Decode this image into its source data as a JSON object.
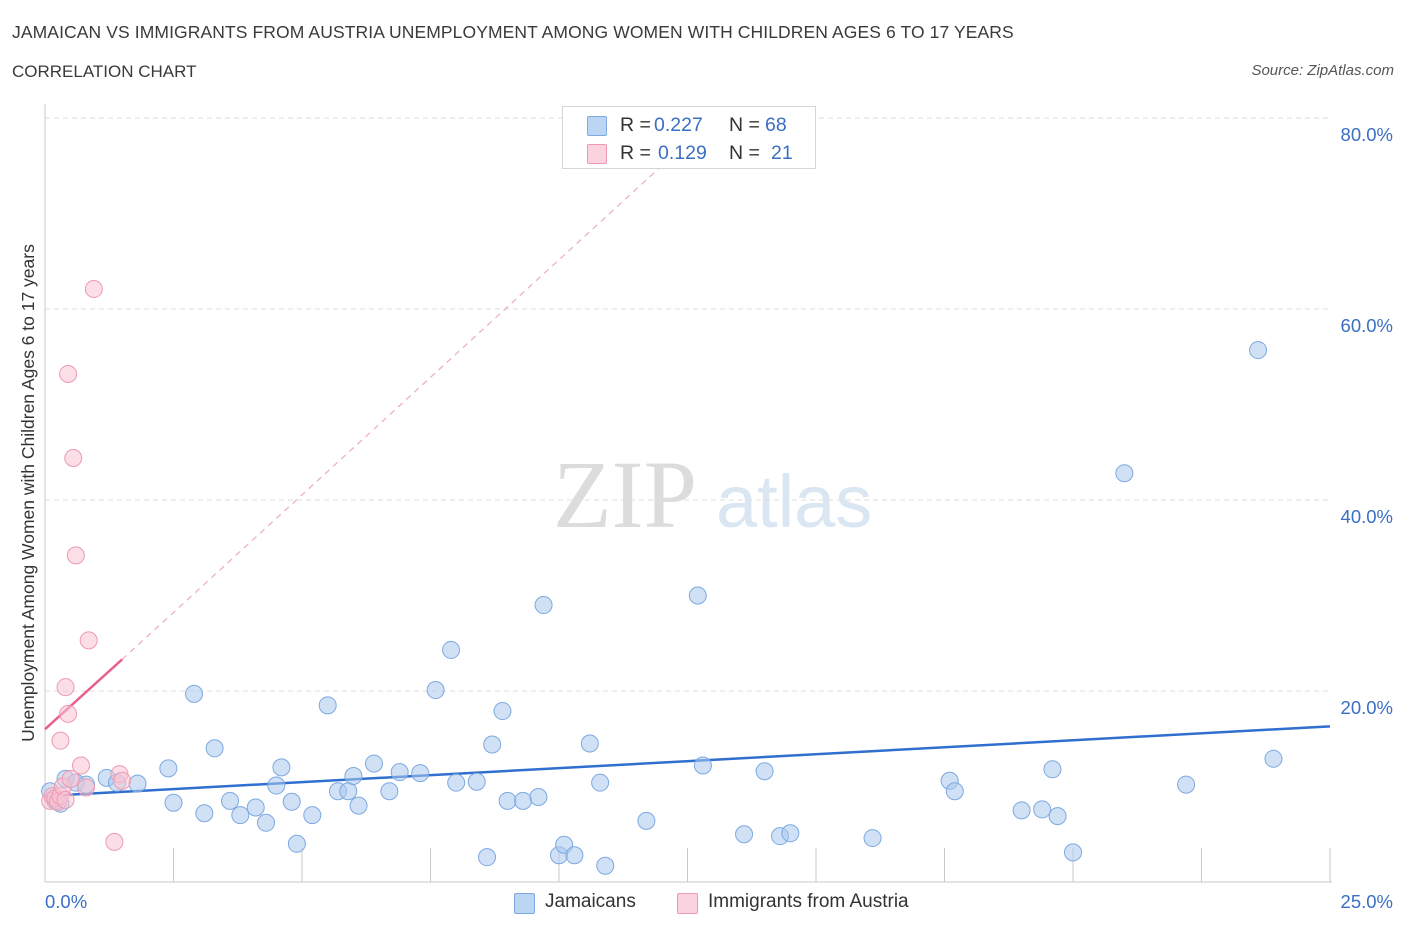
{
  "header": {
    "title": "JAMAICAN VS IMMIGRANTS FROM AUSTRIA UNEMPLOYMENT AMONG WOMEN WITH CHILDREN AGES 6 TO 17 YEARS",
    "subtitle": "CORRELATION CHART",
    "source": "Source: ZipAtlas.com"
  },
  "watermark": {
    "zip": "ZIP",
    "atlas": "atlas"
  },
  "legend": {
    "r_label": "R =",
    "n_label": "N =",
    "series1": {
      "r": "0.227",
      "n": "68"
    },
    "series2": {
      "r": "0.129",
      "n": "21"
    }
  },
  "bottom_legend": {
    "series1": "Jamaicans",
    "series2": "Immigrants from Austria"
  },
  "colors": {
    "jamaicans_fill": "#a9c8ef",
    "jamaicans_stroke": "#7da9e0",
    "jamaicans_line": "#2f6fcf",
    "austria_fill": "#f7c3d2",
    "austria_stroke": "#ec9ab3",
    "austria_line": "#e8608c",
    "grid": "#dedede",
    "axis_text": "#3a6fc4"
  },
  "chart_data": {
    "type": "scatter",
    "title": "JAMAICAN VS IMMIGRANTS FROM AUSTRIA UNEMPLOYMENT AMONG WOMEN WITH CHILDREN AGES 6 TO 17 YEARS",
    "xlabel": "",
    "ylabel": "Unemployment Among Women with Children Ages 6 to 17 years",
    "xlim": [
      0,
      25
    ],
    "ylim": [
      0,
      80
    ],
    "x_tick_labels": [
      "0.0%",
      "25.0%"
    ],
    "y_ticks": [
      20,
      40,
      60,
      80
    ],
    "y_tick_labels": [
      "20.0%",
      "40.0%",
      "60.0%",
      "80.0%"
    ],
    "grid": "horizontal dashed",
    "legend_position": "top-center",
    "series": [
      {
        "name": "Jamaicans",
        "r": 0.227,
        "n": 68,
        "trend": {
          "x": [
            0,
            25
          ],
          "y": [
            9.0,
            16.3
          ]
        },
        "points": [
          [
            0.1,
            9.5
          ],
          [
            0.2,
            8.5
          ],
          [
            0.4,
            10.8
          ],
          [
            0.6,
            10.4
          ],
          [
            0.8,
            10.2
          ],
          [
            1.2,
            10.9
          ],
          [
            1.4,
            10.4
          ],
          [
            1.8,
            10.3
          ],
          [
            2.4,
            11.9
          ],
          [
            2.5,
            8.3
          ],
          [
            2.9,
            19.7
          ],
          [
            3.1,
            7.2
          ],
          [
            3.3,
            14.0
          ],
          [
            3.6,
            8.5
          ],
          [
            3.8,
            7.0
          ],
          [
            4.1,
            7.8
          ],
          [
            4.3,
            6.2
          ],
          [
            4.5,
            10.1
          ],
          [
            4.6,
            12.0
          ],
          [
            4.8,
            8.4
          ],
          [
            4.9,
            4.0
          ],
          [
            5.2,
            7.0
          ],
          [
            5.5,
            18.5
          ],
          [
            5.7,
            9.5
          ],
          [
            5.9,
            9.5
          ],
          [
            6.0,
            11.1
          ],
          [
            6.1,
            8.0
          ],
          [
            6.4,
            12.4
          ],
          [
            6.7,
            9.5
          ],
          [
            6.9,
            11.5
          ],
          [
            7.3,
            11.4
          ],
          [
            7.6,
            20.1
          ],
          [
            7.9,
            24.3
          ],
          [
            8.0,
            10.4
          ],
          [
            8.4,
            10.5
          ],
          [
            8.6,
            2.6
          ],
          [
            8.7,
            14.4
          ],
          [
            8.9,
            17.9
          ],
          [
            9.0,
            8.5
          ],
          [
            9.3,
            8.5
          ],
          [
            9.6,
            8.9
          ],
          [
            9.7,
            29.0
          ],
          [
            10.0,
            2.8
          ],
          [
            10.1,
            3.9
          ],
          [
            10.3,
            2.8
          ],
          [
            10.6,
            14.5
          ],
          [
            10.8,
            10.4
          ],
          [
            10.9,
            1.7
          ],
          [
            11.7,
            6.4
          ],
          [
            12.7,
            30.0
          ],
          [
            12.8,
            12.2
          ],
          [
            13.6,
            5.0
          ],
          [
            14.0,
            11.6
          ],
          [
            14.3,
            4.8
          ],
          [
            14.5,
            5.1
          ],
          [
            16.1,
            4.6
          ],
          [
            17.6,
            10.6
          ],
          [
            17.7,
            9.5
          ],
          [
            19.0,
            7.5
          ],
          [
            19.4,
            7.6
          ],
          [
            19.6,
            11.8
          ],
          [
            19.7,
            6.9
          ],
          [
            20.0,
            3.1
          ],
          [
            21.0,
            42.8
          ],
          [
            22.2,
            10.2
          ],
          [
            23.9,
            12.9
          ],
          [
            23.6,
            55.7
          ],
          [
            0.3,
            8.2
          ]
        ]
      },
      {
        "name": "Immigrants from Austria",
        "r": 0.129,
        "n": 21,
        "trend_solid": {
          "x": [
            0,
            1.5
          ],
          "y": [
            16.0,
            23.3
          ]
        },
        "trend_dashed": {
          "x": [
            1.5,
            12.0
          ],
          "y": [
            23.3,
            75.0
          ]
        },
        "points": [
          [
            0.1,
            8.5
          ],
          [
            0.15,
            9.0
          ],
          [
            0.2,
            8.8
          ],
          [
            0.25,
            8.4
          ],
          [
            0.3,
            9.0
          ],
          [
            0.35,
            10.0
          ],
          [
            0.4,
            8.6
          ],
          [
            0.4,
            20.4
          ],
          [
            0.45,
            17.6
          ],
          [
            0.3,
            14.8
          ],
          [
            0.5,
            10.8
          ],
          [
            0.45,
            53.2
          ],
          [
            0.55,
            44.4
          ],
          [
            0.6,
            34.2
          ],
          [
            0.7,
            12.2
          ],
          [
            0.8,
            9.9
          ],
          [
            0.85,
            25.3
          ],
          [
            0.95,
            62.1
          ],
          [
            1.35,
            4.2
          ],
          [
            1.45,
            11.3
          ],
          [
            1.5,
            10.6
          ]
        ]
      }
    ]
  }
}
